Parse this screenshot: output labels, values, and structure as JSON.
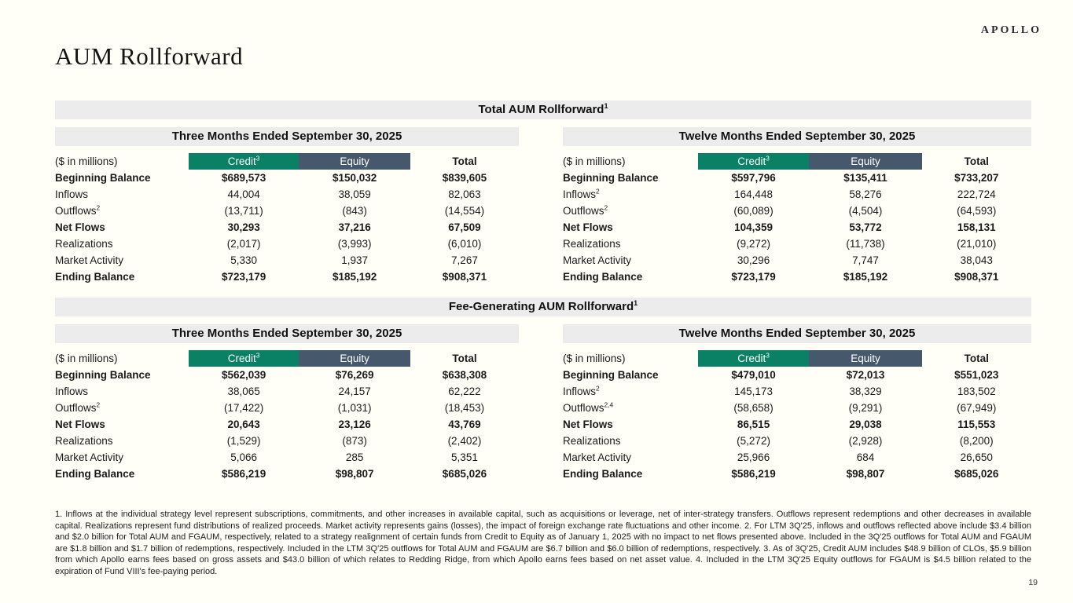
{
  "brand": {
    "logo": "APOLLO"
  },
  "page": {
    "title": "AUM Rollforward",
    "page_number": "19"
  },
  "colors": {
    "credit": "#0a8164",
    "equity": "#46586b",
    "bar": "#ececec"
  },
  "sections": [
    {
      "title": "Total AUM Rollforward",
      "title_sup": "1",
      "tables": [
        {
          "period": "Three Months Ended September 30, 2025",
          "unit_label": "($ in millions)",
          "columns": [
            {
              "label": "Credit",
              "sup": "3",
              "color": "#0a8164"
            },
            {
              "label": "Equity",
              "sup": "",
              "color": "#46586b"
            },
            {
              "label": "Total",
              "sup": ""
            }
          ],
          "rows": [
            {
              "label": "Beginning Balance",
              "sup": "",
              "bold": true,
              "values": [
                "$689,573",
                "$150,032",
                "$839,605"
              ]
            },
            {
              "label": "Inflows",
              "sup": "",
              "bold": false,
              "values": [
                "44,004",
                "38,059",
                "82,063"
              ]
            },
            {
              "label": "Outflows",
              "sup": "2",
              "bold": false,
              "values": [
                "(13,711)",
                "(843)",
                "(14,554)"
              ]
            },
            {
              "label": "Net Flows",
              "sup": "",
              "bold": true,
              "values": [
                "30,293",
                "37,216",
                "67,509"
              ]
            },
            {
              "label": "Realizations",
              "sup": "",
              "bold": false,
              "values": [
                "(2,017)",
                "(3,993)",
                "(6,010)"
              ]
            },
            {
              "label": "Market Activity",
              "sup": "",
              "bold": false,
              "values": [
                "5,330",
                "1,937",
                "7,267"
              ]
            },
            {
              "label": "Ending Balance",
              "sup": "",
              "bold": true,
              "values": [
                "$723,179",
                "$185,192",
                "$908,371"
              ]
            }
          ]
        },
        {
          "period": "Twelve Months Ended September 30, 2025",
          "unit_label": "($ in millions)",
          "columns": [
            {
              "label": "Credit",
              "sup": "3",
              "color": "#0a8164"
            },
            {
              "label": "Equity",
              "sup": "",
              "color": "#46586b"
            },
            {
              "label": "Total",
              "sup": ""
            }
          ],
          "rows": [
            {
              "label": "Beginning Balance",
              "sup": "",
              "bold": true,
              "values": [
                "$597,796",
                "$135,411",
                "$733,207"
              ]
            },
            {
              "label": "Inflows",
              "sup": "2",
              "bold": false,
              "values": [
                "164,448",
                "58,276",
                "222,724"
              ]
            },
            {
              "label": "Outflows",
              "sup": "2",
              "bold": false,
              "values": [
                "(60,089)",
                "(4,504)",
                "(64,593)"
              ]
            },
            {
              "label": "Net Flows",
              "sup": "",
              "bold": true,
              "values": [
                "104,359",
                "53,772",
                "158,131"
              ]
            },
            {
              "label": "Realizations",
              "sup": "",
              "bold": false,
              "values": [
                "(9,272)",
                "(11,738)",
                "(21,010)"
              ]
            },
            {
              "label": "Market Activity",
              "sup": "",
              "bold": false,
              "values": [
                "30,296",
                "7,747",
                "38,043"
              ]
            },
            {
              "label": "Ending Balance",
              "sup": "",
              "bold": true,
              "values": [
                "$723,179",
                "$185,192",
                "$908,371"
              ]
            }
          ]
        }
      ]
    },
    {
      "title": "Fee-Generating AUM Rollforward",
      "title_sup": "1",
      "tables": [
        {
          "period": "Three Months Ended September 30, 2025",
          "unit_label": "($ in millions)",
          "columns": [
            {
              "label": "Credit",
              "sup": "3",
              "color": "#0a8164"
            },
            {
              "label": "Equity",
              "sup": "",
              "color": "#46586b"
            },
            {
              "label": "Total",
              "sup": ""
            }
          ],
          "rows": [
            {
              "label": "Beginning Balance",
              "sup": "",
              "bold": true,
              "values": [
                "$562,039",
                "$76,269",
                "$638,308"
              ]
            },
            {
              "label": "Inflows",
              "sup": "",
              "bold": false,
              "values": [
                "38,065",
                "24,157",
                "62,222"
              ]
            },
            {
              "label": "Outflows",
              "sup": "2",
              "bold": false,
              "values": [
                "(17,422)",
                "(1,031)",
                "(18,453)"
              ]
            },
            {
              "label": "Net Flows",
              "sup": "",
              "bold": true,
              "values": [
                "20,643",
                "23,126",
                "43,769"
              ]
            },
            {
              "label": "Realizations",
              "sup": "",
              "bold": false,
              "values": [
                "(1,529)",
                "(873)",
                "(2,402)"
              ]
            },
            {
              "label": "Market Activity",
              "sup": "",
              "bold": false,
              "values": [
                "5,066",
                "285",
                "5,351"
              ]
            },
            {
              "label": "Ending Balance",
              "sup": "",
              "bold": true,
              "values": [
                "$586,219",
                "$98,807",
                "$685,026"
              ]
            }
          ]
        },
        {
          "period": "Twelve Months Ended September 30, 2025",
          "unit_label": "($ in millions)",
          "columns": [
            {
              "label": "Credit",
              "sup": "3",
              "color": "#0a8164"
            },
            {
              "label": "Equity",
              "sup": "",
              "color": "#46586b"
            },
            {
              "label": "Total",
              "sup": ""
            }
          ],
          "rows": [
            {
              "label": "Beginning Balance",
              "sup": "",
              "bold": true,
              "values": [
                "$479,010",
                "$72,013",
                "$551,023"
              ]
            },
            {
              "label": "Inflows",
              "sup": "2",
              "bold": false,
              "values": [
                "145,173",
                "38,329",
                "183,502"
              ]
            },
            {
              "label": "Outflows",
              "sup": "2,4",
              "bold": false,
              "values": [
                "(58,658)",
                "(9,291)",
                "(67,949)"
              ]
            },
            {
              "label": "Net Flows",
              "sup": "",
              "bold": true,
              "values": [
                "86,515",
                "29,038",
                "115,553"
              ]
            },
            {
              "label": "Realizations",
              "sup": "",
              "bold": false,
              "values": [
                "(5,272)",
                "(2,928)",
                "(8,200)"
              ]
            },
            {
              "label": "Market Activity",
              "sup": "",
              "bold": false,
              "values": [
                "25,966",
                "684",
                "26,650"
              ]
            },
            {
              "label": "Ending Balance",
              "sup": "",
              "bold": true,
              "values": [
                "$586,219",
                "$98,807",
                "$685,026"
              ]
            }
          ]
        }
      ]
    }
  ],
  "footnotes": "1. Inflows at the individual strategy level represent subscriptions, commitments, and other increases in available capital, such as acquisitions or leverage, net of inter-strategy transfers. Outflows represent redemptions and other decreases in available capital. Realizations represent fund distributions of realized proceeds. Market activity represents gains (losses), the impact of foreign exchange rate fluctuations and other income. 2. For LTM 3Q'25, inflows and outflows reflected above include $3.4 billion and $2.0 billion for Total AUM and FGAUM, respectively, related to a strategy realignment of certain funds from Credit to Equity as of January 1, 2025 with no impact to net flows presented above. Included in the 3Q'25 outflows for Total AUM and FGAUM are $1.8 billion and $1.7 billion of redemptions, respectively. Included in the LTM 3Q'25 outflows for Total AUM and FGAUM are $6.7 billion and $6.0 billion of redemptions, respectively. 3. As of 3Q'25, Credit AUM includes $48.9 billion of CLOs, $5.9 billion from which Apollo earns fees based on gross assets and $43.0 billion of which relates to Redding Ridge, from which Apollo earns fees based on net asset value. 4. Included in the LTM 3Q'25 Equity outflows for FGAUM is $4.5 billion related to the expiration of Fund VIII's fee-paying period."
}
